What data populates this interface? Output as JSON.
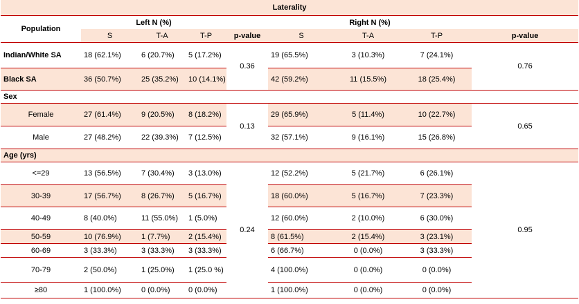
{
  "table": {
    "title": "Laterality",
    "header": {
      "population": "Population",
      "left_group": "Left   N (%)",
      "right_group": "Right   N (%)",
      "cols": [
        "S",
        "T-A",
        "T-P",
        "p-value",
        "S",
        "T-A",
        "T-P",
        "p-value"
      ]
    },
    "sections": [
      {
        "name": "",
        "rows": [
          {
            "label": "Indian/White SA",
            "l": [
              "18 (62.1%)",
              "6 (20.7%)",
              "5 (17.2%)"
            ],
            "r": [
              "19 (65.5%)",
              "3 (10.3%)",
              "7 (24.1%)"
            ]
          },
          {
            "label": "Black SA",
            "l": [
              "36 (50.7%)",
              "25 (35.2%)",
              "10 (14.1%)"
            ],
            "r": [
              "42 (59.2%)",
              "11 (15.5%)",
              "18 (25.4%)"
            ]
          }
        ],
        "p_left": "0.36",
        "p_right": "0.76"
      },
      {
        "name": "Sex",
        "rows": [
          {
            "label": "Female",
            "l": [
              "27 (61.4%)",
              "9 (20.5%)",
              "8 (18.2%)"
            ],
            "r": [
              "29 (65.9%)",
              "5 (11.4%)",
              "10 (22.7%)"
            ]
          },
          {
            "label": "Male",
            "l": [
              "27 (48.2%)",
              "22 (39.3%)",
              "7 (12.5%)"
            ],
            "r": [
              "32 (57.1%)",
              "9 (16.1%)",
              "15 (26.8%)"
            ]
          }
        ],
        "p_left": "0.13",
        "p_right": "0.65"
      },
      {
        "name": "Age (yrs)",
        "rows": [
          {
            "label": "<=29",
            "l": [
              "13 (56.5%)",
              "7 (30.4%)",
              "3 (13.0%)"
            ],
            "r": [
              "12 (52.2%)",
              "5 (21.7%)",
              "6 (26.1%)"
            ]
          },
          {
            "label": "30-39",
            "l": [
              "17 (56.7%)",
              "8 (26.7%)",
              "5 (16.7%)"
            ],
            "r": [
              "18 (60.0%)",
              "5 (16.7%)",
              "7 (23.3%)"
            ]
          },
          {
            "label": "40-49",
            "l": [
              "8 (40.0%)",
              "11 (55.0%)",
              "1 (5.0%)"
            ],
            "r": [
              "12 (60.0%)",
              "2 (10.0%)",
              "6 (30.0%)"
            ]
          },
          {
            "label": "50-59",
            "l": [
              "10 (76.9%)",
              "1 (7.7%)",
              "2 (15.4%)"
            ],
            "r": [
              "8 (61.5%)",
              "2 (15.4%)",
              "3 (23.1%)"
            ]
          },
          {
            "label": "60-69",
            "l": [
              "3 (33.3%)",
              "3 (33.3%)",
              "3 (33.3%)"
            ],
            "r": [
              "6 (66.7%)",
              "0 (0.0%)",
              "3 (33.3%)"
            ]
          },
          {
            "label": "70-79",
            "l": [
              "2 (50.0%)",
              "1 (25.0%)",
              "1 (25.0 %)"
            ],
            "r": [
              "4 (100.0%)",
              "0 (0.0%)",
              "0 (0.0%)"
            ]
          },
          {
            "label": "≥80",
            "l": [
              "1 (100.0%)",
              "0 (0.0%)",
              "0 (0.0%)"
            ],
            "r": [
              "1 (100.0%)",
              "0 (0.0%)",
              "0 (0.0%)"
            ]
          }
        ],
        "p_left": "0.24",
        "p_right": "0.95"
      }
    ]
  }
}
